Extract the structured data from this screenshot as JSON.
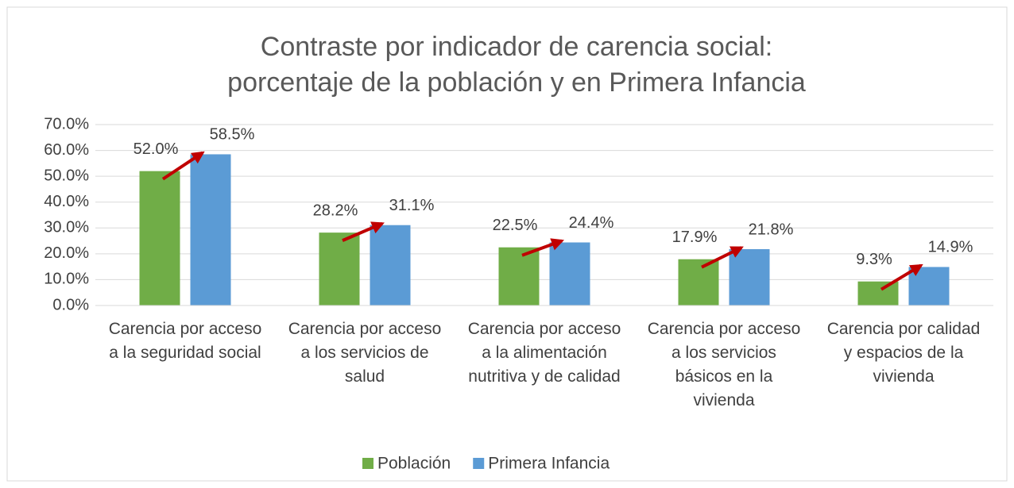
{
  "chart_data": {
    "type": "bar",
    "title": [
      "Contraste por indicador de carencia social:",
      "porcentaje de la población y en Primera Infancia"
    ],
    "categories": [
      "Carencia por acceso a la seguridad social",
      "Carencia por acceso a los servicios de salud",
      "Carencia por acceso a la alimentación nutritiva y de calidad",
      "Carencia por acceso a los servicios básicos en la vivienda",
      "Carencia por calidad y espacios de la vivienda"
    ],
    "series": [
      {
        "name": "Población",
        "color": "#70ad47",
        "values": [
          52.0,
          28.2,
          22.5,
          17.9,
          9.3
        ],
        "value_labels": [
          "52.0%",
          "28.2%",
          "22.5%",
          "17.9%",
          "9.3%"
        ]
      },
      {
        "name": "Primera Infancia",
        "color": "#5b9bd5",
        "values": [
          58.5,
          31.1,
          24.4,
          21.8,
          14.9
        ],
        "value_labels": [
          "58.5%",
          "31.1%",
          "24.4%",
          "21.8%",
          "14.9%"
        ]
      }
    ],
    "ylim": [
      0,
      70
    ],
    "yticks": [
      {
        "value": 0,
        "label": "0.0%"
      },
      {
        "value": 10,
        "label": "10.0%"
      },
      {
        "value": 20,
        "label": "20.0%"
      },
      {
        "value": 30,
        "label": "30.0%"
      },
      {
        "value": 40,
        "label": "40.0%"
      },
      {
        "value": 50,
        "label": "50.0%"
      },
      {
        "value": 60,
        "label": "60.0%"
      },
      {
        "value": 70,
        "label": "70.0%"
      }
    ],
    "grid": true,
    "legend": "bottom"
  }
}
